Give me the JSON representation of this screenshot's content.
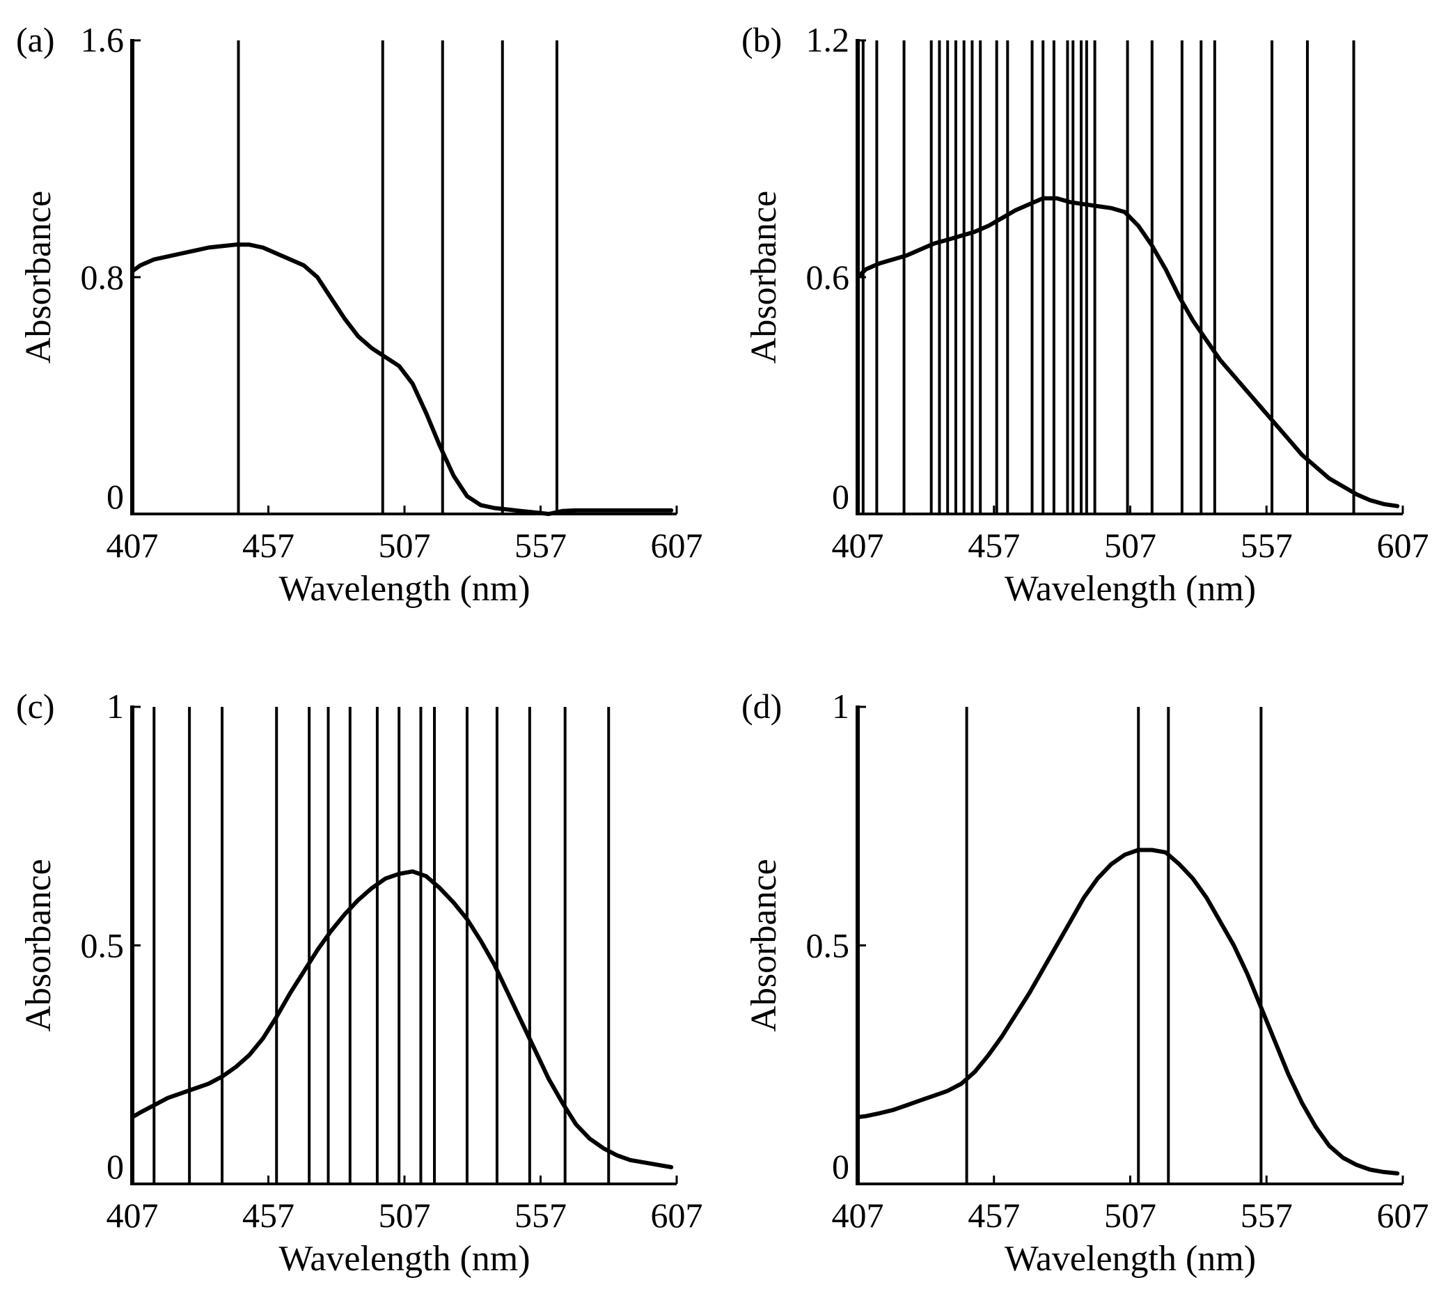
{
  "chart_data": [
    {
      "panel": "(a)",
      "type": "line",
      "xlabel": "Wavelength (nm)",
      "ylabel": "Absorbance",
      "xlim": [
        407,
        607
      ],
      "ylim": [
        0,
        1.6
      ],
      "xticks": [
        407,
        457,
        507,
        557,
        607
      ],
      "xtick_labels": [
        "407",
        "457",
        "507",
        "557",
        "607"
      ],
      "yticks": [
        0,
        0.8,
        1.6
      ],
      "ytick_labels": [
        "0",
        "0.8",
        "1.6"
      ],
      "selected_wavelengths": [
        446,
        499,
        521,
        543,
        563
      ],
      "series": [
        {
          "name": "Absorbance",
          "x": [
            407,
            410,
            415,
            420,
            425,
            430,
            435,
            440,
            445,
            450,
            455,
            460,
            465,
            470,
            475,
            480,
            485,
            490,
            495,
            500,
            505,
            510,
            515,
            520,
            525,
            530,
            535,
            540,
            545,
            550,
            555,
            560,
            565,
            570,
            575,
            580,
            585,
            590,
            595,
            600,
            605
          ],
          "y": [
            0.82,
            0.84,
            0.86,
            0.87,
            0.88,
            0.89,
            0.9,
            0.905,
            0.91,
            0.91,
            0.9,
            0.88,
            0.86,
            0.84,
            0.8,
            0.73,
            0.66,
            0.6,
            0.56,
            0.53,
            0.5,
            0.44,
            0.34,
            0.23,
            0.13,
            0.06,
            0.03,
            0.02,
            0.015,
            0.01,
            0.005,
            0.0,
            0.01,
            0.012,
            0.012,
            0.012,
            0.012,
            0.012,
            0.012,
            0.012,
            0.012
          ]
        }
      ]
    },
    {
      "panel": "(b)",
      "type": "line",
      "xlabel": "Wavelength (nm)",
      "ylabel": "Absorbance",
      "xlim": [
        407,
        607
      ],
      "ylim": [
        0,
        1.2
      ],
      "xticks": [
        407,
        457,
        507,
        557,
        607
      ],
      "xtick_labels": [
        "407",
        "457",
        "507",
        "557",
        "607"
      ],
      "yticks": [
        0,
        0.6,
        1.2
      ],
      "ytick_labels": [
        "0",
        "0.6",
        "1.2"
      ],
      "selected_wavelengths": [
        409,
        414,
        424,
        434,
        437,
        440,
        443,
        446,
        449,
        452,
        458,
        462,
        471,
        475,
        479,
        484,
        486,
        489,
        491,
        494,
        506,
        515,
        526,
        533,
        538,
        559,
        572,
        589
      ],
      "series": [
        {
          "name": "Absorbance",
          "x": [
            407,
            410,
            415,
            420,
            425,
            430,
            435,
            440,
            445,
            450,
            455,
            460,
            465,
            470,
            475,
            480,
            485,
            490,
            495,
            500,
            505,
            510,
            515,
            520,
            525,
            530,
            535,
            540,
            545,
            550,
            555,
            560,
            565,
            570,
            575,
            580,
            585,
            590,
            595,
            600,
            605
          ],
          "y": [
            0.6,
            0.62,
            0.635,
            0.645,
            0.655,
            0.67,
            0.685,
            0.695,
            0.705,
            0.715,
            0.73,
            0.75,
            0.77,
            0.785,
            0.8,
            0.8,
            0.79,
            0.785,
            0.78,
            0.775,
            0.765,
            0.73,
            0.68,
            0.62,
            0.55,
            0.49,
            0.44,
            0.39,
            0.35,
            0.31,
            0.27,
            0.23,
            0.19,
            0.15,
            0.12,
            0.09,
            0.07,
            0.05,
            0.035,
            0.025,
            0.02
          ]
        }
      ]
    },
    {
      "panel": "(c)",
      "type": "line",
      "xlabel": "Wavelength (nm)",
      "ylabel": "Absorbance",
      "xlim": [
        407,
        607
      ],
      "ylim": [
        0,
        1
      ],
      "xticks": [
        407,
        457,
        507,
        557,
        607
      ],
      "xtick_labels": [
        "407",
        "457",
        "507",
        "557",
        "607"
      ],
      "yticks": [
        0,
        0.5,
        1
      ],
      "ytick_labels": [
        "0",
        "0.5",
        "1"
      ],
      "selected_wavelengths": [
        415,
        428,
        440,
        460,
        472,
        479,
        487,
        497,
        505,
        513,
        518,
        530,
        541,
        553,
        566,
        582
      ],
      "series": [
        {
          "name": "Absorbance",
          "x": [
            407,
            410,
            415,
            420,
            425,
            430,
            435,
            440,
            445,
            450,
            455,
            460,
            465,
            470,
            475,
            480,
            485,
            490,
            495,
            500,
            505,
            510,
            515,
            520,
            525,
            530,
            535,
            540,
            545,
            550,
            555,
            560,
            565,
            570,
            575,
            580,
            585,
            590,
            595,
            600,
            605
          ],
          "y": [
            0.14,
            0.15,
            0.165,
            0.18,
            0.19,
            0.2,
            0.21,
            0.225,
            0.245,
            0.27,
            0.305,
            0.35,
            0.4,
            0.445,
            0.49,
            0.53,
            0.565,
            0.595,
            0.62,
            0.64,
            0.65,
            0.655,
            0.645,
            0.62,
            0.59,
            0.555,
            0.51,
            0.46,
            0.4,
            0.34,
            0.28,
            0.22,
            0.17,
            0.125,
            0.095,
            0.075,
            0.06,
            0.05,
            0.045,
            0.04,
            0.035
          ]
        }
      ]
    },
    {
      "panel": "(d)",
      "type": "line",
      "xlabel": "Wavelength (nm)",
      "ylabel": "Absorbance",
      "xlim": [
        407,
        607
      ],
      "ylim": [
        0,
        1
      ],
      "xticks": [
        407,
        457,
        507,
        557,
        607
      ],
      "xtick_labels": [
        "407",
        "457",
        "507",
        "557",
        "607"
      ],
      "yticks": [
        0,
        0.5,
        1
      ],
      "ytick_labels": [
        "0",
        "0.5",
        "1"
      ],
      "selected_wavelengths": [
        447,
        510,
        521,
        555
      ],
      "series": [
        {
          "name": "Absorbance",
          "x": [
            407,
            410,
            415,
            420,
            425,
            430,
            435,
            440,
            445,
            450,
            455,
            460,
            465,
            470,
            475,
            480,
            485,
            490,
            495,
            500,
            505,
            510,
            515,
            520,
            525,
            530,
            535,
            540,
            545,
            550,
            555,
            560,
            565,
            570,
            575,
            580,
            585,
            590,
            595,
            600,
            605
          ],
          "y": [
            0.14,
            0.142,
            0.148,
            0.155,
            0.165,
            0.175,
            0.185,
            0.195,
            0.21,
            0.235,
            0.27,
            0.31,
            0.355,
            0.4,
            0.45,
            0.5,
            0.55,
            0.6,
            0.64,
            0.67,
            0.69,
            0.7,
            0.7,
            0.695,
            0.67,
            0.64,
            0.6,
            0.55,
            0.5,
            0.44,
            0.37,
            0.3,
            0.23,
            0.17,
            0.12,
            0.08,
            0.055,
            0.04,
            0.03,
            0.025,
            0.022
          ]
        }
      ]
    }
  ]
}
